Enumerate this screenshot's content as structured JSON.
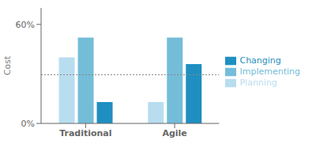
{
  "chart_data": {
    "type": "bar",
    "categories": [
      "Traditional",
      "Agile"
    ],
    "series": [
      {
        "name": "Planning",
        "color": "#b8ddef",
        "values": [
          0.4,
          0.13
        ]
      },
      {
        "name": "Implementing",
        "color": "#74bdd9",
        "values": [
          0.52,
          0.52
        ]
      },
      {
        "name": "Changing",
        "color": "#1e8fc0",
        "values": [
          0.13,
          0.36
        ]
      }
    ],
    "ylabel": "Cost",
    "ylim": [
      0.0,
      0.7
    ],
    "yticks": [
      {
        "value": 0.0,
        "label": "0%"
      },
      {
        "value": 0.6,
        "label": "60%"
      }
    ],
    "reference_line": 0.295,
    "grid": false,
    "legend": "right"
  }
}
